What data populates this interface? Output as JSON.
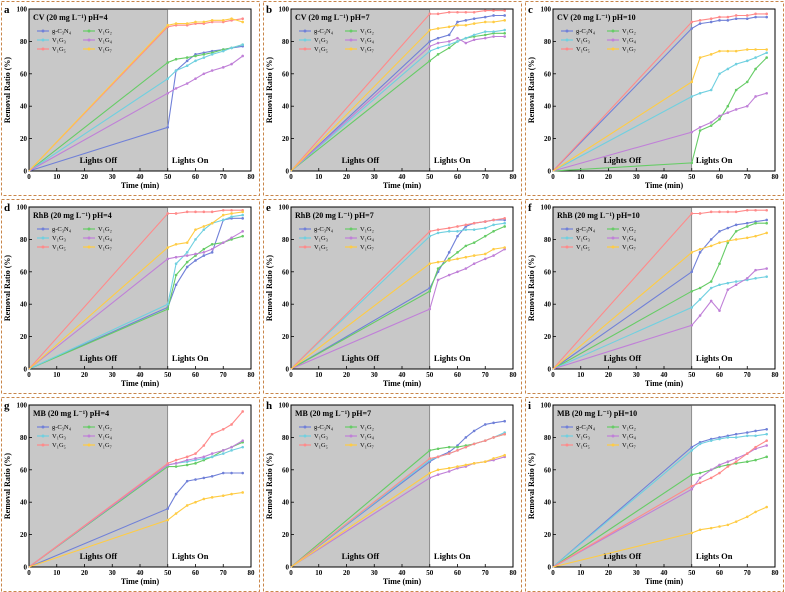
{
  "chart_data": [
    {
      "type": "line",
      "letter": "a",
      "title": "CV (20 mg L⁻¹) pH=4",
      "xlabel": "Time (min)",
      "ylabel": "Removal Ratio (%)",
      "xlim": [
        0,
        80
      ],
      "ylim": [
        0,
        100
      ],
      "lights_off_label": "Lights Off",
      "lights_on_label": "Lights On",
      "x": [
        0,
        50,
        53,
        57,
        60,
        63,
        66,
        70,
        73,
        77
      ],
      "series": [
        {
          "name": "g-C₃N₄",
          "values": [
            0,
            27,
            62,
            68,
            72,
            73,
            74,
            75,
            76,
            77
          ]
        },
        {
          "name": "V₁G₂",
          "values": [
            0,
            67,
            69,
            70,
            71,
            72,
            73,
            75,
            76,
            78
          ]
        },
        {
          "name": "V₁G₃",
          "values": [
            0,
            57,
            62,
            65,
            68,
            70,
            72,
            74,
            76,
            78
          ]
        },
        {
          "name": "V₁G₄",
          "values": [
            0,
            48,
            51,
            54,
            57,
            60,
            62,
            64,
            66,
            71
          ]
        },
        {
          "name": "V₁G₅",
          "values": [
            0,
            89,
            90,
            90,
            91,
            91,
            92,
            92,
            93,
            94
          ]
        },
        {
          "name": "V₁G₇",
          "values": [
            0,
            90,
            91,
            91,
            92,
            92,
            93,
            93,
            94,
            92
          ]
        }
      ]
    },
    {
      "type": "line",
      "letter": "b",
      "title": "CV (20 mg L⁻¹) pH=7",
      "xlabel": "Time (min)",
      "ylabel": "Removal Ratio (%)",
      "xlim": [
        0,
        80
      ],
      "ylim": [
        0,
        100
      ],
      "lights_off_label": "Lights Off",
      "lights_on_label": "Lights On",
      "x": [
        0,
        50,
        53,
        57,
        60,
        63,
        66,
        70,
        73,
        77
      ],
      "series": [
        {
          "name": "g-C₃N₄",
          "values": [
            0,
            80,
            82,
            84,
            92,
            93,
            94,
            95,
            96,
            96
          ]
        },
        {
          "name": "V₁G₂",
          "values": [
            0,
            68,
            72,
            76,
            80,
            82,
            83,
            84,
            85,
            85
          ]
        },
        {
          "name": "V₁G₃",
          "values": [
            0,
            74,
            76,
            78,
            80,
            82,
            84,
            86,
            86,
            87
          ]
        },
        {
          "name": "V₁G₄",
          "values": [
            0,
            77,
            79,
            80,
            82,
            79,
            81,
            82,
            83,
            83
          ]
        },
        {
          "name": "V₁G₅",
          "values": [
            0,
            97,
            97,
            98,
            98,
            98,
            98,
            99,
            99,
            99
          ]
        },
        {
          "name": "V₁G₇",
          "values": [
            0,
            87,
            88,
            89,
            90,
            90,
            91,
            92,
            92,
            93
          ]
        }
      ]
    },
    {
      "type": "line",
      "letter": "c",
      "title": "CV (20 mg L⁻¹) pH=10",
      "xlabel": "Time (min)",
      "ylabel": "Removal Ratio (%)",
      "xlim": [
        0,
        80
      ],
      "ylim": [
        0,
        100
      ],
      "lights_off_label": "Lights Off",
      "lights_on_label": "Lights On",
      "x": [
        0,
        50,
        53,
        57,
        60,
        63,
        66,
        70,
        73,
        77
      ],
      "series": [
        {
          "name": "g-C₃N₄",
          "values": [
            0,
            88,
            91,
            92,
            93,
            93,
            94,
            94,
            95,
            95
          ]
        },
        {
          "name": "V₁G₂",
          "values": [
            0,
            5,
            25,
            28,
            32,
            40,
            50,
            55,
            63,
            70
          ]
        },
        {
          "name": "V₁G₃",
          "values": [
            0,
            46,
            48,
            50,
            60,
            63,
            66,
            68,
            70,
            73
          ]
        },
        {
          "name": "V₁G₄",
          "values": [
            0,
            24,
            27,
            30,
            34,
            36,
            38,
            40,
            46,
            48
          ]
        },
        {
          "name": "V₁G₅",
          "values": [
            0,
            92,
            93,
            94,
            95,
            95,
            96,
            96,
            97,
            97
          ]
        },
        {
          "name": "V₁G₇",
          "values": [
            0,
            55,
            70,
            72,
            74,
            74,
            74,
            75,
            75,
            75
          ]
        }
      ]
    },
    {
      "type": "line",
      "letter": "d",
      "title": "RhB (20 mg L⁻¹) pH=4",
      "xlabel": "Time (min)",
      "ylabel": "Removal Ratio (%)",
      "xlim": [
        0,
        80
      ],
      "ylim": [
        0,
        100
      ],
      "lights_off_label": "Lights Off",
      "lights_on_label": "Lights On",
      "x": [
        0,
        50,
        53,
        57,
        60,
        63,
        66,
        70,
        73,
        77
      ],
      "series": [
        {
          "name": "g-C₃N₄",
          "values": [
            0,
            38,
            52,
            63,
            67,
            70,
            72,
            92,
            93,
            93
          ]
        },
        {
          "name": "V₁G₂",
          "values": [
            0,
            37,
            58,
            66,
            70,
            74,
            77,
            78,
            80,
            82
          ]
        },
        {
          "name": "V₁G₃",
          "values": [
            0,
            40,
            65,
            72,
            80,
            86,
            90,
            92,
            94,
            95
          ]
        },
        {
          "name": "V₁G₄",
          "values": [
            0,
            68,
            69,
            70,
            71,
            72,
            74,
            78,
            81,
            85
          ]
        },
        {
          "name": "V₁G₅",
          "values": [
            0,
            96,
            96,
            97,
            97,
            97,
            97,
            98,
            98,
            98
          ]
        },
        {
          "name": "V₁G₇",
          "values": [
            0,
            75,
            77,
            78,
            86,
            88,
            90,
            95,
            96,
            97
          ]
        }
      ]
    },
    {
      "type": "line",
      "letter": "e",
      "title": "RhB (20 mg L⁻¹) pH=7",
      "xlabel": "Time (min)",
      "ylabel": "Removal Ratio (%)",
      "xlim": [
        0,
        80
      ],
      "ylim": [
        0,
        100
      ],
      "lights_off_label": "Lights Off",
      "lights_on_label": "Lights On",
      "x": [
        0,
        50,
        53,
        57,
        60,
        63,
        66,
        70,
        73,
        77
      ],
      "series": [
        {
          "name": "g-C₃N₄",
          "values": [
            0,
            50,
            60,
            72,
            82,
            88,
            90,
            91,
            92,
            92
          ]
        },
        {
          "name": "V₁G₂",
          "values": [
            0,
            48,
            62,
            68,
            72,
            76,
            78,
            82,
            85,
            88
          ]
        },
        {
          "name": "V₁G₃",
          "values": [
            0,
            82,
            84,
            85,
            85,
            86,
            86,
            87,
            89,
            90
          ]
        },
        {
          "name": "V₁G₄",
          "values": [
            0,
            37,
            55,
            58,
            60,
            62,
            65,
            68,
            70,
            74
          ]
        },
        {
          "name": "V₁G₅",
          "values": [
            0,
            85,
            86,
            87,
            88,
            89,
            90,
            91,
            92,
            93
          ]
        },
        {
          "name": "V₁G₇",
          "values": [
            0,
            65,
            66,
            67,
            68,
            69,
            70,
            71,
            74,
            75
          ]
        }
      ]
    },
    {
      "type": "line",
      "letter": "f",
      "title": "RhB (20 mg L⁻¹) pH=10",
      "xlabel": "Time (min)",
      "ylabel": "Removal Ratio (%)",
      "xlim": [
        0,
        80
      ],
      "ylim": [
        0,
        100
      ],
      "lights_off_label": "Lights Off",
      "lights_on_label": "Lights On",
      "x": [
        0,
        50,
        53,
        57,
        60,
        63,
        66,
        70,
        73,
        77
      ],
      "series": [
        {
          "name": "g-C₃N₄",
          "values": [
            0,
            60,
            72,
            80,
            85,
            87,
            89,
            90,
            91,
            92
          ]
        },
        {
          "name": "V₁G₂",
          "values": [
            0,
            48,
            50,
            54,
            65,
            78,
            85,
            88,
            90,
            90
          ]
        },
        {
          "name": "V₁G₃",
          "values": [
            0,
            38,
            43,
            50,
            52,
            53,
            54,
            55,
            56,
            57
          ]
        },
        {
          "name": "V₁G₄",
          "values": [
            0,
            27,
            33,
            42,
            36,
            49,
            52,
            56,
            61,
            62
          ]
        },
        {
          "name": "V₁G₅",
          "values": [
            0,
            96,
            96,
            97,
            97,
            97,
            97,
            98,
            98,
            98
          ]
        },
        {
          "name": "V₁G₇",
          "values": [
            0,
            72,
            74,
            76,
            78,
            79,
            80,
            81,
            82,
            84
          ]
        }
      ]
    },
    {
      "type": "line",
      "letter": "g",
      "title": "MB (20 mg L⁻¹) pH=4",
      "xlabel": "Time (min)",
      "ylabel": "Removal Ratio (%)",
      "xlim": [
        0,
        80
      ],
      "ylim": [
        0,
        100
      ],
      "lights_off_label": "Lights Off",
      "lights_on_label": "Lights On",
      "x": [
        0,
        50,
        53,
        57,
        60,
        63,
        66,
        70,
        73,
        77
      ],
      "series": [
        {
          "name": "g-C₃N₄",
          "values": [
            0,
            36,
            45,
            53,
            54,
            55,
            56,
            58,
            58,
            58
          ]
        },
        {
          "name": "V₁G₂",
          "values": [
            0,
            62,
            62,
            63,
            64,
            66,
            68,
            72,
            74,
            77
          ]
        },
        {
          "name": "V₁G₃",
          "values": [
            0,
            63,
            64,
            65,
            66,
            67,
            68,
            70,
            72,
            74
          ]
        },
        {
          "name": "V₁G₄",
          "values": [
            0,
            63,
            64,
            66,
            67,
            68,
            70,
            72,
            74,
            78
          ]
        },
        {
          "name": "V₁G₅",
          "values": [
            0,
            64,
            66,
            68,
            70,
            75,
            82,
            85,
            88,
            96
          ]
        },
        {
          "name": "V₁G₇",
          "values": [
            0,
            29,
            33,
            38,
            40,
            42,
            43,
            44,
            45,
            46
          ]
        }
      ]
    },
    {
      "type": "line",
      "letter": "h",
      "title": "MB (20 mg L⁻¹) pH=7",
      "xlabel": "Time (min)",
      "ylabel": "Removal Ratio (%)",
      "xlim": [
        0,
        80
      ],
      "ylim": [
        0,
        100
      ],
      "lights_off_label": "Lights Off",
      "lights_on_label": "Lights On",
      "x": [
        0,
        50,
        53,
        57,
        60,
        63,
        66,
        70,
        73,
        77
      ],
      "series": [
        {
          "name": "g-C₃N₄",
          "values": [
            0,
            65,
            68,
            71,
            75,
            80,
            84,
            88,
            89,
            90
          ]
        },
        {
          "name": "V₁G₂",
          "values": [
            0,
            72,
            73,
            74,
            74,
            75,
            76,
            78,
            80,
            82
          ]
        },
        {
          "name": "V₁G₃",
          "values": [
            0,
            66,
            68,
            70,
            72,
            74,
            76,
            78,
            80,
            83
          ]
        },
        {
          "name": "V₁G₄",
          "values": [
            0,
            55,
            57,
            59,
            61,
            62,
            64,
            65,
            66,
            68
          ]
        },
        {
          "name": "V₁G₅",
          "values": [
            0,
            67,
            68,
            70,
            72,
            74,
            76,
            78,
            80,
            82
          ]
        },
        {
          "name": "V₁G₇",
          "values": [
            0,
            58,
            60,
            61,
            62,
            63,
            64,
            65,
            67,
            69
          ]
        }
      ]
    },
    {
      "type": "line",
      "letter": "i",
      "title": "MB (20 mg L⁻¹) pH=10",
      "xlabel": "Time (min)",
      "ylabel": "Removal Ratio (%)",
      "xlim": [
        0,
        80
      ],
      "ylim": [
        0,
        100
      ],
      "lights_off_label": "Lights Off",
      "lights_on_label": "Lights On",
      "x": [
        0,
        50,
        53,
        57,
        60,
        63,
        66,
        70,
        73,
        77
      ],
      "series": [
        {
          "name": "g-C₃N₄",
          "values": [
            0,
            74,
            77,
            79,
            80,
            81,
            82,
            83,
            84,
            85
          ]
        },
        {
          "name": "V₁G₂",
          "values": [
            0,
            57,
            58,
            60,
            62,
            63,
            64,
            65,
            66,
            68
          ]
        },
        {
          "name": "V₁G₃",
          "values": [
            0,
            72,
            76,
            78,
            79,
            80,
            80,
            81,
            81,
            82
          ]
        },
        {
          "name": "V₁G₄",
          "values": [
            0,
            48,
            55,
            60,
            63,
            65,
            67,
            70,
            73,
            75
          ]
        },
        {
          "name": "V₁G₅",
          "values": [
            0,
            50,
            52,
            55,
            58,
            62,
            65,
            70,
            74,
            78
          ]
        },
        {
          "name": "V₁G₇",
          "values": [
            0,
            21,
            23,
            24,
            25,
            26,
            28,
            31,
            34,
            37
          ]
        }
      ]
    }
  ],
  "series_colors": [
    "#7080d8",
    "#66cc66",
    "#70d0e0",
    "#c080d8",
    "#ff8a8a",
    "#ffcc44"
  ],
  "shade_color": "#c8c8c8",
  "border_color": "#c8864a"
}
